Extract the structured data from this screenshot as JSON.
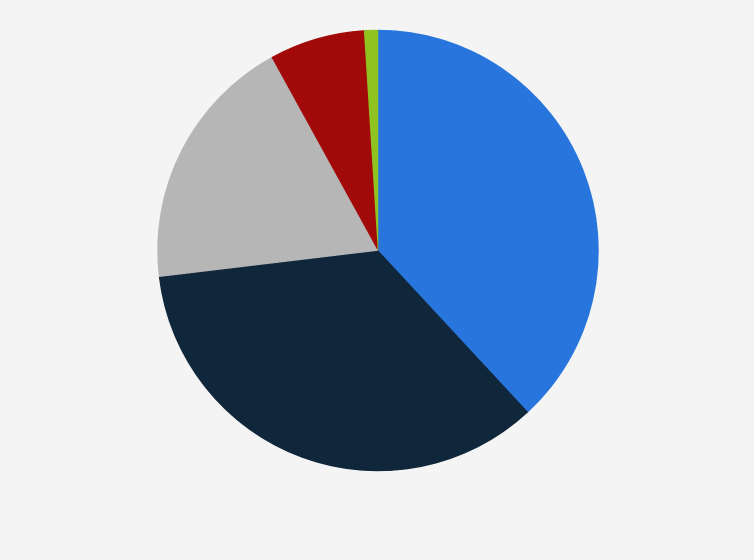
{
  "chart_data": {
    "type": "pie",
    "values": [
      38.1,
      35.0,
      18.9,
      7.0,
      1.0
    ],
    "colors": [
      "#2876dd",
      "#10263b",
      "#b6b6b6",
      "#a20a0a",
      "#8fc31f"
    ],
    "start": "top",
    "direction": "clockwise",
    "legend": "none",
    "data_labels": "none"
  },
  "background": "#f4f4f4"
}
